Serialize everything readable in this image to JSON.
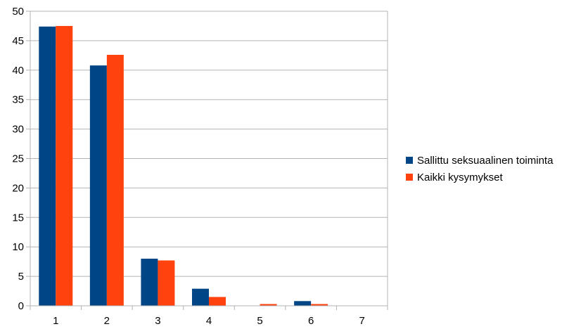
{
  "chart_data": {
    "type": "bar",
    "categories": [
      "1",
      "2",
      "3",
      "4",
      "5",
      "6",
      "7"
    ],
    "series": [
      {
        "name": "Sallittu seksuaalinen toiminta",
        "color": "#004586",
        "values": [
          47.4,
          40.8,
          8.0,
          2.9,
          0.0,
          0.8,
          0.0
        ]
      },
      {
        "name": "Kaikki kysymykset",
        "color": "#ff420e",
        "values": [
          47.5,
          42.6,
          7.7,
          1.5,
          0.3,
          0.3,
          0.0
        ]
      }
    ],
    "title": "",
    "xlabel": "",
    "ylabel": "",
    "ylim": [
      0,
      50
    ],
    "yticks": [
      0,
      5,
      10,
      15,
      20,
      25,
      30,
      35,
      40,
      45,
      50
    ],
    "grid": true,
    "legend_position": "right"
  }
}
